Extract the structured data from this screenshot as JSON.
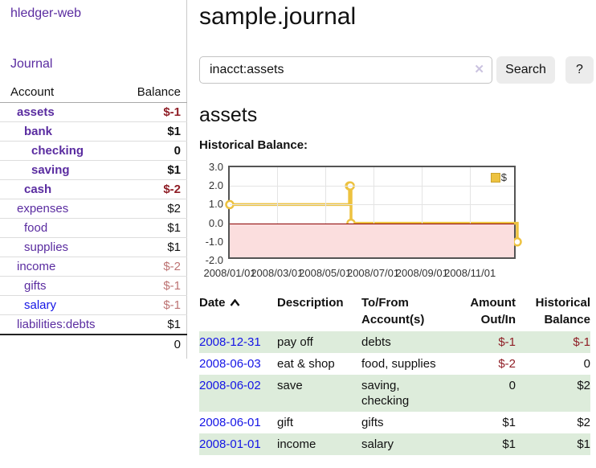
{
  "colors": {
    "accent_purple": "#5a2ca0",
    "link_blue": "#1515e6",
    "negative": "#8f1e26",
    "soft_negative": "#bd7373",
    "row_green": "#ddecdb",
    "chart_yellow": "#edc240",
    "chart_yellow_border": "#c9a22e",
    "chart_negative_fill": "#fbdede",
    "chart_zero_line": "#8b0000",
    "chart_border": "#545454",
    "grid_line": "#e4e4e4",
    "button_bg": "#ececec",
    "clear_icon": "#cbc3e0"
  },
  "sidebar": {
    "brand": "hledger-web",
    "journal_link": "Journal",
    "accounts_table": {
      "headers": {
        "account": "Account",
        "balance": "Balance"
      },
      "rows": [
        {
          "name": "assets",
          "depth": 0,
          "bold": true,
          "link": "purple",
          "balance": "$-1",
          "balance_color": "negative"
        },
        {
          "name": "bank",
          "depth": 1,
          "bold": true,
          "link": "purple",
          "balance": "$1",
          "balance_color": "normal"
        },
        {
          "name": "checking",
          "depth": 2,
          "bold": true,
          "link": "purple",
          "balance": "0",
          "balance_color": "normal"
        },
        {
          "name": "saving",
          "depth": 2,
          "bold": true,
          "link": "purple",
          "balance": "$1",
          "balance_color": "normal"
        },
        {
          "name": "cash",
          "depth": 1,
          "bold": true,
          "link": "purple",
          "balance": "$-2",
          "balance_color": "negative"
        },
        {
          "name": "expenses",
          "depth": 0,
          "bold": false,
          "link": "purple",
          "balance": "$2",
          "balance_color": "normal"
        },
        {
          "name": "food",
          "depth": 1,
          "bold": false,
          "link": "purple",
          "balance": "$1",
          "balance_color": "normal"
        },
        {
          "name": "supplies",
          "depth": 1,
          "bold": false,
          "link": "purple",
          "balance": "$1",
          "balance_color": "normal"
        },
        {
          "name": "income",
          "depth": 0,
          "bold": false,
          "link": "purple",
          "balance": "$-2",
          "balance_color": "soft-negative"
        },
        {
          "name": "gifts",
          "depth": 1,
          "bold": false,
          "link": "purple",
          "balance": "$-1",
          "balance_color": "soft-negative"
        },
        {
          "name": "salary",
          "depth": 1,
          "bold": false,
          "link": "blue",
          "balance": "$-1",
          "balance_color": "soft-negative"
        },
        {
          "name": "liabilities:debts",
          "depth": 0,
          "bold": false,
          "link": "purple",
          "balance": "$1",
          "balance_color": "normal"
        }
      ],
      "total": "0"
    }
  },
  "header": {
    "title": "sample.journal"
  },
  "search": {
    "value": "inacct:assets",
    "clear_icon": "✕",
    "button_label": "Search",
    "help_label": "?"
  },
  "account_page": {
    "heading": "assets",
    "chart_label": "Historical Balance:"
  },
  "chart_data": {
    "type": "line",
    "style": "step",
    "title": "Historical Balance of assets",
    "x_range": [
      "2008-01-01",
      "2008-12-31"
    ],
    "ylim": [
      -2,
      3
    ],
    "y_ticks": [
      "3.0",
      "2.0",
      "1.0",
      "0.0",
      "-1.0",
      "-2.0"
    ],
    "x_ticks": [
      "2008/01/01",
      "2008/03/01",
      "2008/05/01",
      "2008/07/01",
      "2008/09/01",
      "2008/11/01"
    ],
    "grid": true,
    "negative_region_shaded": true,
    "legend": {
      "label": "$",
      "position": "top-right"
    },
    "series": [
      {
        "name": "$",
        "color": "#edc240",
        "points": [
          [
            "2008-01-01",
            1
          ],
          [
            "2008-06-01",
            2
          ],
          [
            "2008-06-02",
            2
          ],
          [
            "2008-06-03",
            0
          ],
          [
            "2008-12-31",
            -1
          ]
        ]
      }
    ]
  },
  "register": {
    "headers": [
      "Date",
      "Description",
      "To/From Account(s)",
      "Amount Out/In",
      "Historical Balance"
    ],
    "rows": [
      {
        "date": "2008-12-31",
        "description": "pay off",
        "accounts": "debts",
        "amount": "$-1",
        "amount_negative": true,
        "balance": "$-1",
        "balance_negative": true
      },
      {
        "date": "2008-06-03",
        "description": "eat & shop",
        "accounts": "food, supplies",
        "amount": "$-2",
        "amount_negative": true,
        "balance": "0",
        "balance_negative": false
      },
      {
        "date": "2008-06-02",
        "description": "save",
        "accounts": "saving, checking",
        "amount": "0",
        "amount_negative": false,
        "balance": "$2",
        "balance_negative": false
      },
      {
        "date": "2008-06-01",
        "description": "gift",
        "accounts": "gifts",
        "amount": "$1",
        "amount_negative": false,
        "balance": "$2",
        "balance_negative": false
      },
      {
        "date": "2008-01-01",
        "description": "income",
        "accounts": "salary",
        "amount": "$1",
        "amount_negative": false,
        "balance": "$1",
        "balance_negative": false
      }
    ]
  }
}
